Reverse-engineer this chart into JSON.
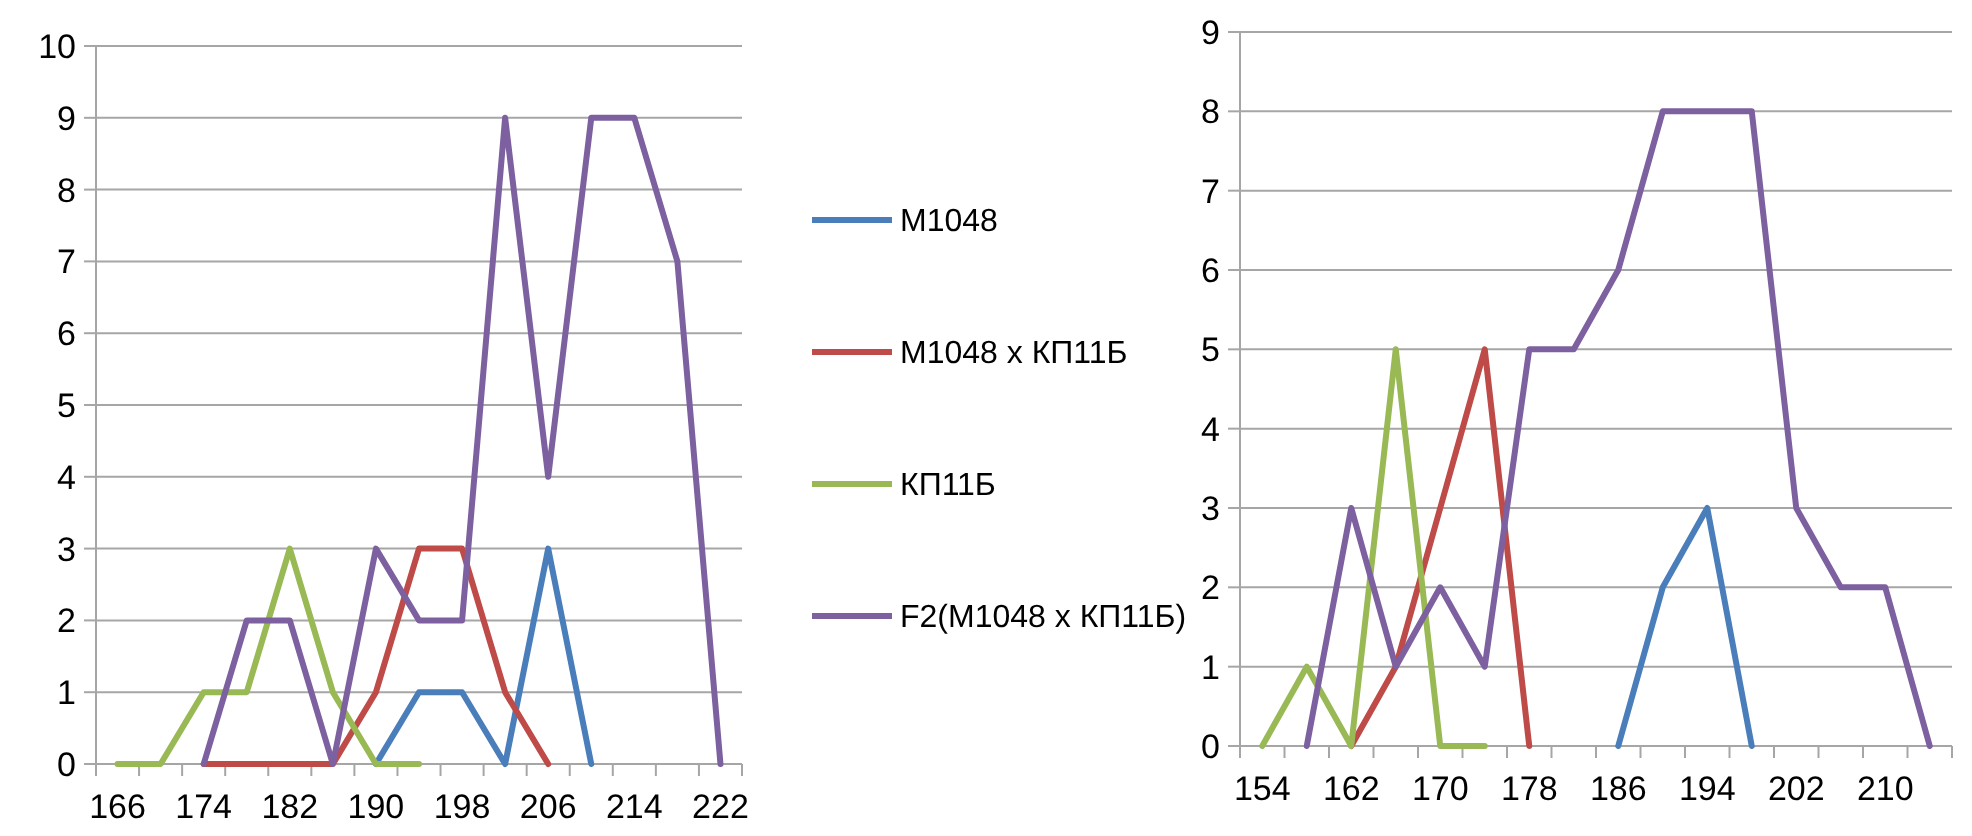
{
  "chart_data": [
    {
      "type": "line",
      "categories": [
        "166",
        null,
        "174",
        null,
        "182",
        null,
        "190",
        null,
        "198",
        null,
        "206",
        null,
        "214",
        null,
        "222"
      ],
      "ylim": [
        0,
        10
      ],
      "yticks": [
        0,
        1,
        2,
        3,
        4,
        5,
        6,
        7,
        8,
        9,
        10
      ],
      "grid": "y",
      "legend": "right",
      "marker": "none",
      "line_style": "solid",
      "series": [
        {
          "name": "M1048",
          "color": "#4a7ebb",
          "values": [
            null,
            null,
            null,
            null,
            null,
            null,
            0,
            1,
            1,
            0,
            3,
            0,
            null,
            null,
            null
          ]
        },
        {
          "name": "M1048 x КП11Б",
          "color": "#be4b48",
          "values": [
            null,
            null,
            0,
            0,
            0,
            0,
            1,
            3,
            3,
            1,
            0,
            null,
            null,
            null,
            null
          ]
        },
        {
          "name": "КП11Б",
          "color": "#98b954",
          "values": [
            0,
            0,
            1,
            1,
            3,
            1,
            0,
            0,
            null,
            null,
            null,
            null,
            null,
            null,
            null
          ]
        },
        {
          "name": "F2(M1048 x КП11Б)",
          "color": "#7d60a0",
          "values": [
            null,
            null,
            0,
            2,
            2,
            0,
            3,
            2,
            2,
            9,
            4,
            9,
            9,
            7,
            0
          ]
        }
      ]
    },
    {
      "type": "line",
      "categories": [
        "154",
        null,
        "162",
        null,
        "170",
        null,
        "178",
        null,
        "186",
        null,
        "194",
        null,
        "202",
        null,
        "210",
        null
      ],
      "ylim": [
        0,
        9
      ],
      "yticks": [
        0,
        1,
        2,
        3,
        4,
        5,
        6,
        7,
        8,
        9
      ],
      "grid": "y",
      "marker": "none",
      "line_style": "solid",
      "series": [
        {
          "color": "#4a7ebb",
          "values": [
            null,
            null,
            null,
            null,
            null,
            null,
            null,
            null,
            0,
            2,
            3,
            0,
            null,
            null,
            null,
            null
          ]
        },
        {
          "color": "#be4b48",
          "values": [
            null,
            null,
            0,
            1,
            3,
            5,
            0,
            null,
            null,
            null,
            null,
            null,
            null,
            null,
            null,
            null
          ]
        },
        {
          "color": "#98b954",
          "values": [
            0,
            1,
            0,
            5,
            0,
            0,
            null,
            null,
            null,
            null,
            null,
            null,
            null,
            null,
            null,
            null
          ]
        },
        {
          "color": "#7d60a0",
          "values": [
            null,
            0,
            3,
            1,
            2,
            1,
            5,
            5,
            6,
            8,
            8,
            8,
            3,
            2,
            2,
            0
          ]
        }
      ]
    }
  ]
}
